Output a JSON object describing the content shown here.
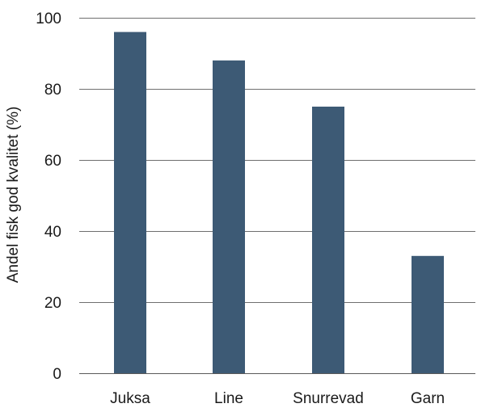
{
  "chart_data": {
    "type": "bar",
    "categories": [
      "Juksa",
      "Line",
      "Snurrevad",
      "Garn"
    ],
    "values": [
      96,
      88,
      75,
      33
    ],
    "title": "",
    "xlabel": "",
    "ylabel": "Andel fisk god kvalitet (%)",
    "ylim": [
      0,
      100
    ],
    "yticks": [
      0,
      20,
      40,
      60,
      80,
      100
    ],
    "grid": true,
    "bar_color": "#3d5a75",
    "grid_color": "#6f6f6f"
  }
}
